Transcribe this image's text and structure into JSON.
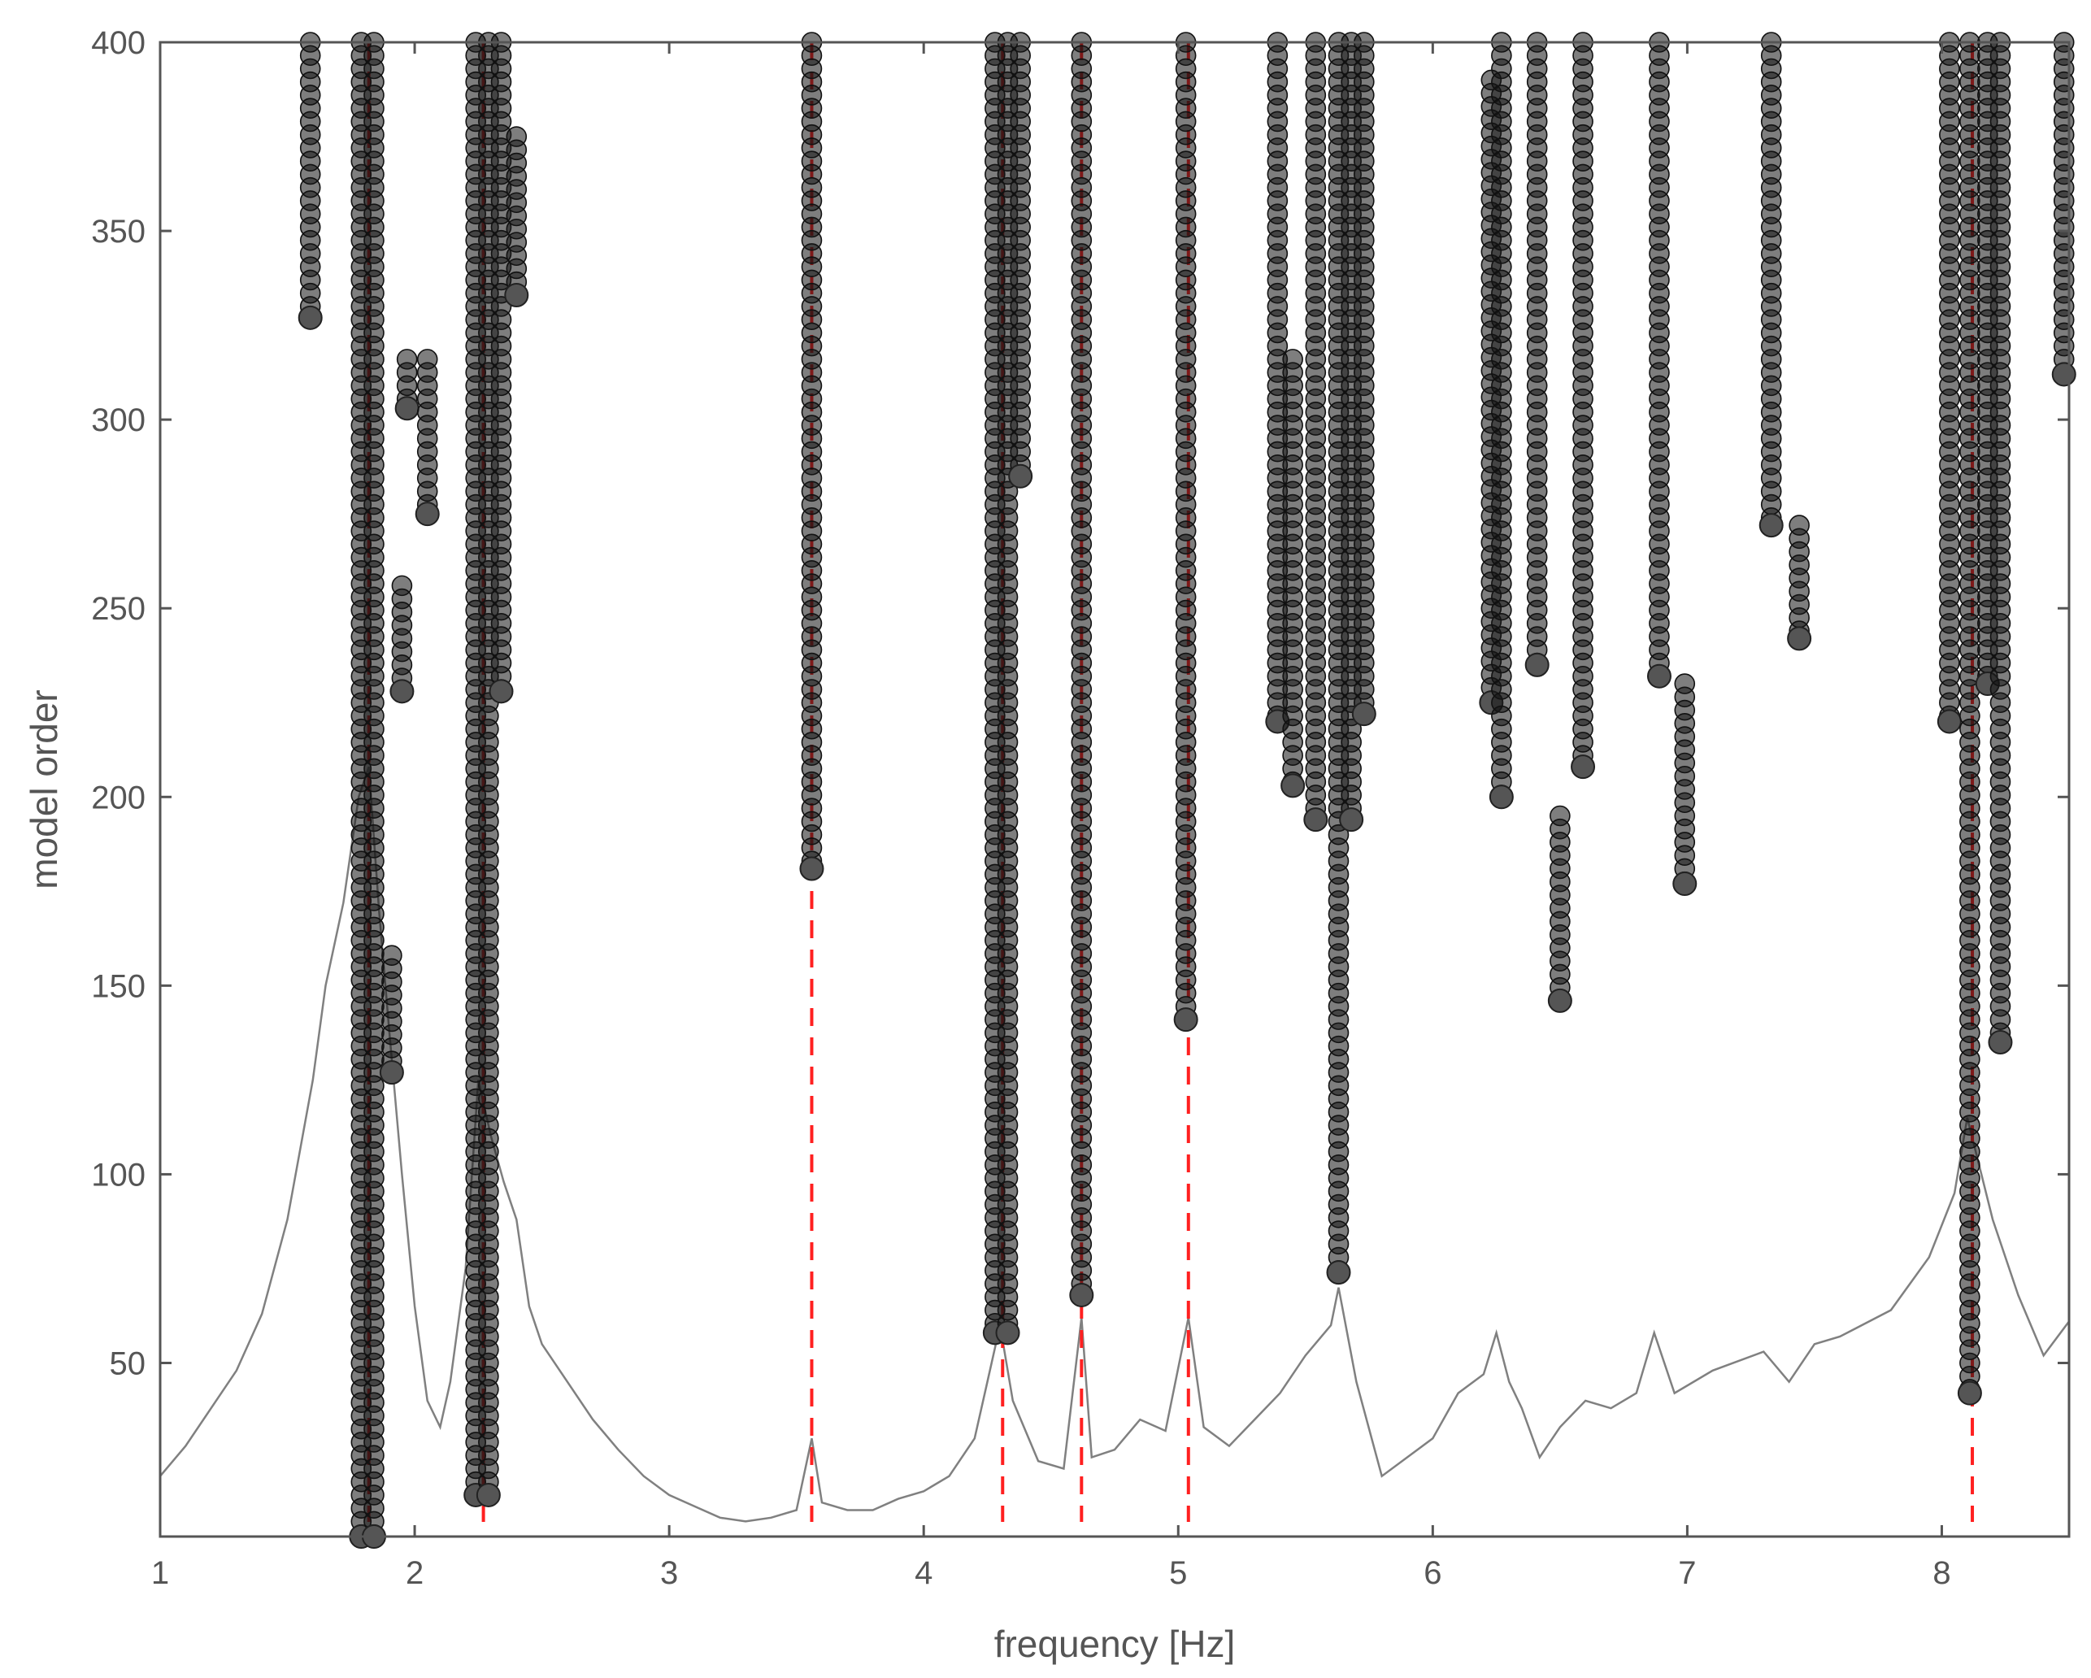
{
  "chart_data": {
    "type": "scatter",
    "title": "",
    "xlabel": "frequency [Hz]",
    "ylabel": "model order",
    "xlim": [
      1,
      8.5
    ],
    "ylim": [
      4,
      400
    ],
    "xticks": [
      1,
      2,
      3,
      4,
      5,
      6,
      7,
      8
    ],
    "yticks": [
      50,
      100,
      150,
      200,
      250,
      300,
      350,
      400
    ],
    "grid": false,
    "legend": "none",
    "colors": {
      "markers": "#1a1a1a",
      "identified": "#ff2020",
      "spectrum": "#808080",
      "axes": "#555555"
    },
    "identified_frequencies": [
      1.82,
      2.27,
      3.56,
      4.31,
      4.62,
      5.04,
      8.12
    ],
    "stable_pole_columns": [
      {
        "f": 1.59,
        "order_min": 327,
        "order_max": 400
      },
      {
        "f": 1.79,
        "order_min": 4,
        "order_max": 400
      },
      {
        "f": 1.84,
        "order_min": 4,
        "order_max": 400
      },
      {
        "f": 1.91,
        "order_min": 127,
        "order_max": 158
      },
      {
        "f": 1.95,
        "order_min": 228,
        "order_max": 256
      },
      {
        "f": 1.97,
        "order_min": 303,
        "order_max": 316
      },
      {
        "f": 2.05,
        "order_min": 275,
        "order_max": 316
      },
      {
        "f": 2.24,
        "order_min": 15,
        "order_max": 400
      },
      {
        "f": 2.29,
        "order_min": 15,
        "order_max": 400
      },
      {
        "f": 2.34,
        "order_min": 228,
        "order_max": 400
      },
      {
        "f": 2.4,
        "order_min": 333,
        "order_max": 375
      },
      {
        "f": 3.56,
        "order_min": 181,
        "order_max": 400
      },
      {
        "f": 4.28,
        "order_min": 58,
        "order_max": 400
      },
      {
        "f": 4.33,
        "order_min": 58,
        "order_max": 400
      },
      {
        "f": 4.38,
        "order_min": 285,
        "order_max": 400
      },
      {
        "f": 4.62,
        "order_min": 68,
        "order_max": 400
      },
      {
        "f": 5.03,
        "order_min": 141,
        "order_max": 400
      },
      {
        "f": 5.39,
        "order_min": 220,
        "order_max": 400
      },
      {
        "f": 5.45,
        "order_min": 203,
        "order_max": 316
      },
      {
        "f": 5.54,
        "order_min": 194,
        "order_max": 400
      },
      {
        "f": 5.63,
        "order_min": 74,
        "order_max": 400
      },
      {
        "f": 5.68,
        "order_min": 194,
        "order_max": 400
      },
      {
        "f": 5.73,
        "order_min": 222,
        "order_max": 400
      },
      {
        "f": 6.23,
        "order_min": 225,
        "order_max": 390
      },
      {
        "f": 6.27,
        "order_min": 200,
        "order_max": 400
      },
      {
        "f": 6.41,
        "order_min": 235,
        "order_max": 400
      },
      {
        "f": 6.5,
        "order_min": 146,
        "order_max": 195
      },
      {
        "f": 6.59,
        "order_min": 208,
        "order_max": 400
      },
      {
        "f": 6.89,
        "order_min": 232,
        "order_max": 400
      },
      {
        "f": 6.99,
        "order_min": 177,
        "order_max": 230
      },
      {
        "f": 7.33,
        "order_min": 272,
        "order_max": 400
      },
      {
        "f": 7.44,
        "order_min": 242,
        "order_max": 272
      },
      {
        "f": 8.03,
        "order_min": 220,
        "order_max": 400
      },
      {
        "f": 8.11,
        "order_min": 42,
        "order_max": 400
      },
      {
        "f": 8.18,
        "order_min": 230,
        "order_max": 400
      },
      {
        "f": 8.23,
        "order_min": 135,
        "order_max": 400
      },
      {
        "f": 8.48,
        "order_min": 312,
        "order_max": 400
      }
    ],
    "spectrum_curve": [
      [
        1.0,
        20
      ],
      [
        1.1,
        28
      ],
      [
        1.2,
        38
      ],
      [
        1.3,
        48
      ],
      [
        1.4,
        63
      ],
      [
        1.5,
        88
      ],
      [
        1.6,
        125
      ],
      [
        1.65,
        150
      ],
      [
        1.72,
        172
      ],
      [
        1.78,
        200
      ],
      [
        1.82,
        208
      ],
      [
        1.86,
        170
      ],
      [
        1.9,
        138
      ],
      [
        1.95,
        100
      ],
      [
        2.0,
        65
      ],
      [
        2.05,
        40
      ],
      [
        2.1,
        33
      ],
      [
        2.14,
        45
      ],
      [
        2.2,
        75
      ],
      [
        2.25,
        125
      ],
      [
        2.3,
        110
      ],
      [
        2.35,
        98
      ],
      [
        2.4,
        88
      ],
      [
        2.45,
        65
      ],
      [
        2.5,
        55
      ],
      [
        2.6,
        45
      ],
      [
        2.7,
        35
      ],
      [
        2.8,
        27
      ],
      [
        2.9,
        20
      ],
      [
        3.0,
        15
      ],
      [
        3.1,
        12
      ],
      [
        3.2,
        9
      ],
      [
        3.3,
        8
      ],
      [
        3.4,
        9
      ],
      [
        3.5,
        11
      ],
      [
        3.56,
        30
      ],
      [
        3.6,
        13
      ],
      [
        3.7,
        11
      ],
      [
        3.8,
        11
      ],
      [
        3.9,
        14
      ],
      [
        4.0,
        16
      ],
      [
        4.1,
        20
      ],
      [
        4.2,
        30
      ],
      [
        4.25,
        45
      ],
      [
        4.3,
        60
      ],
      [
        4.35,
        40
      ],
      [
        4.45,
        24
      ],
      [
        4.55,
        22
      ],
      [
        4.62,
        62
      ],
      [
        4.66,
        25
      ],
      [
        4.75,
        27
      ],
      [
        4.85,
        35
      ],
      [
        4.95,
        32
      ],
      [
        5.04,
        62
      ],
      [
        5.1,
        33
      ],
      [
        5.2,
        28
      ],
      [
        5.3,
        35
      ],
      [
        5.4,
        42
      ],
      [
        5.5,
        52
      ],
      [
        5.6,
        60
      ],
      [
        5.63,
        70
      ],
      [
        5.7,
        45
      ],
      [
        5.8,
        20
      ],
      [
        5.9,
        25
      ],
      [
        6.0,
        30
      ],
      [
        6.1,
        42
      ],
      [
        6.2,
        47
      ],
      [
        6.25,
        58
      ],
      [
        6.3,
        45
      ],
      [
        6.35,
        38
      ],
      [
        6.42,
        25
      ],
      [
        6.5,
        33
      ],
      [
        6.6,
        40
      ],
      [
        6.7,
        38
      ],
      [
        6.8,
        42
      ],
      [
        6.87,
        58
      ],
      [
        6.95,
        42
      ],
      [
        7.1,
        48
      ],
      [
        7.3,
        53
      ],
      [
        7.4,
        45
      ],
      [
        7.5,
        55
      ],
      [
        7.6,
        57
      ],
      [
        7.8,
        64
      ],
      [
        7.95,
        78
      ],
      [
        8.05,
        95
      ],
      [
        8.1,
        115
      ],
      [
        8.2,
        88
      ],
      [
        8.3,
        68
      ],
      [
        8.4,
        52
      ],
      [
        8.5,
        61
      ]
    ]
  }
}
